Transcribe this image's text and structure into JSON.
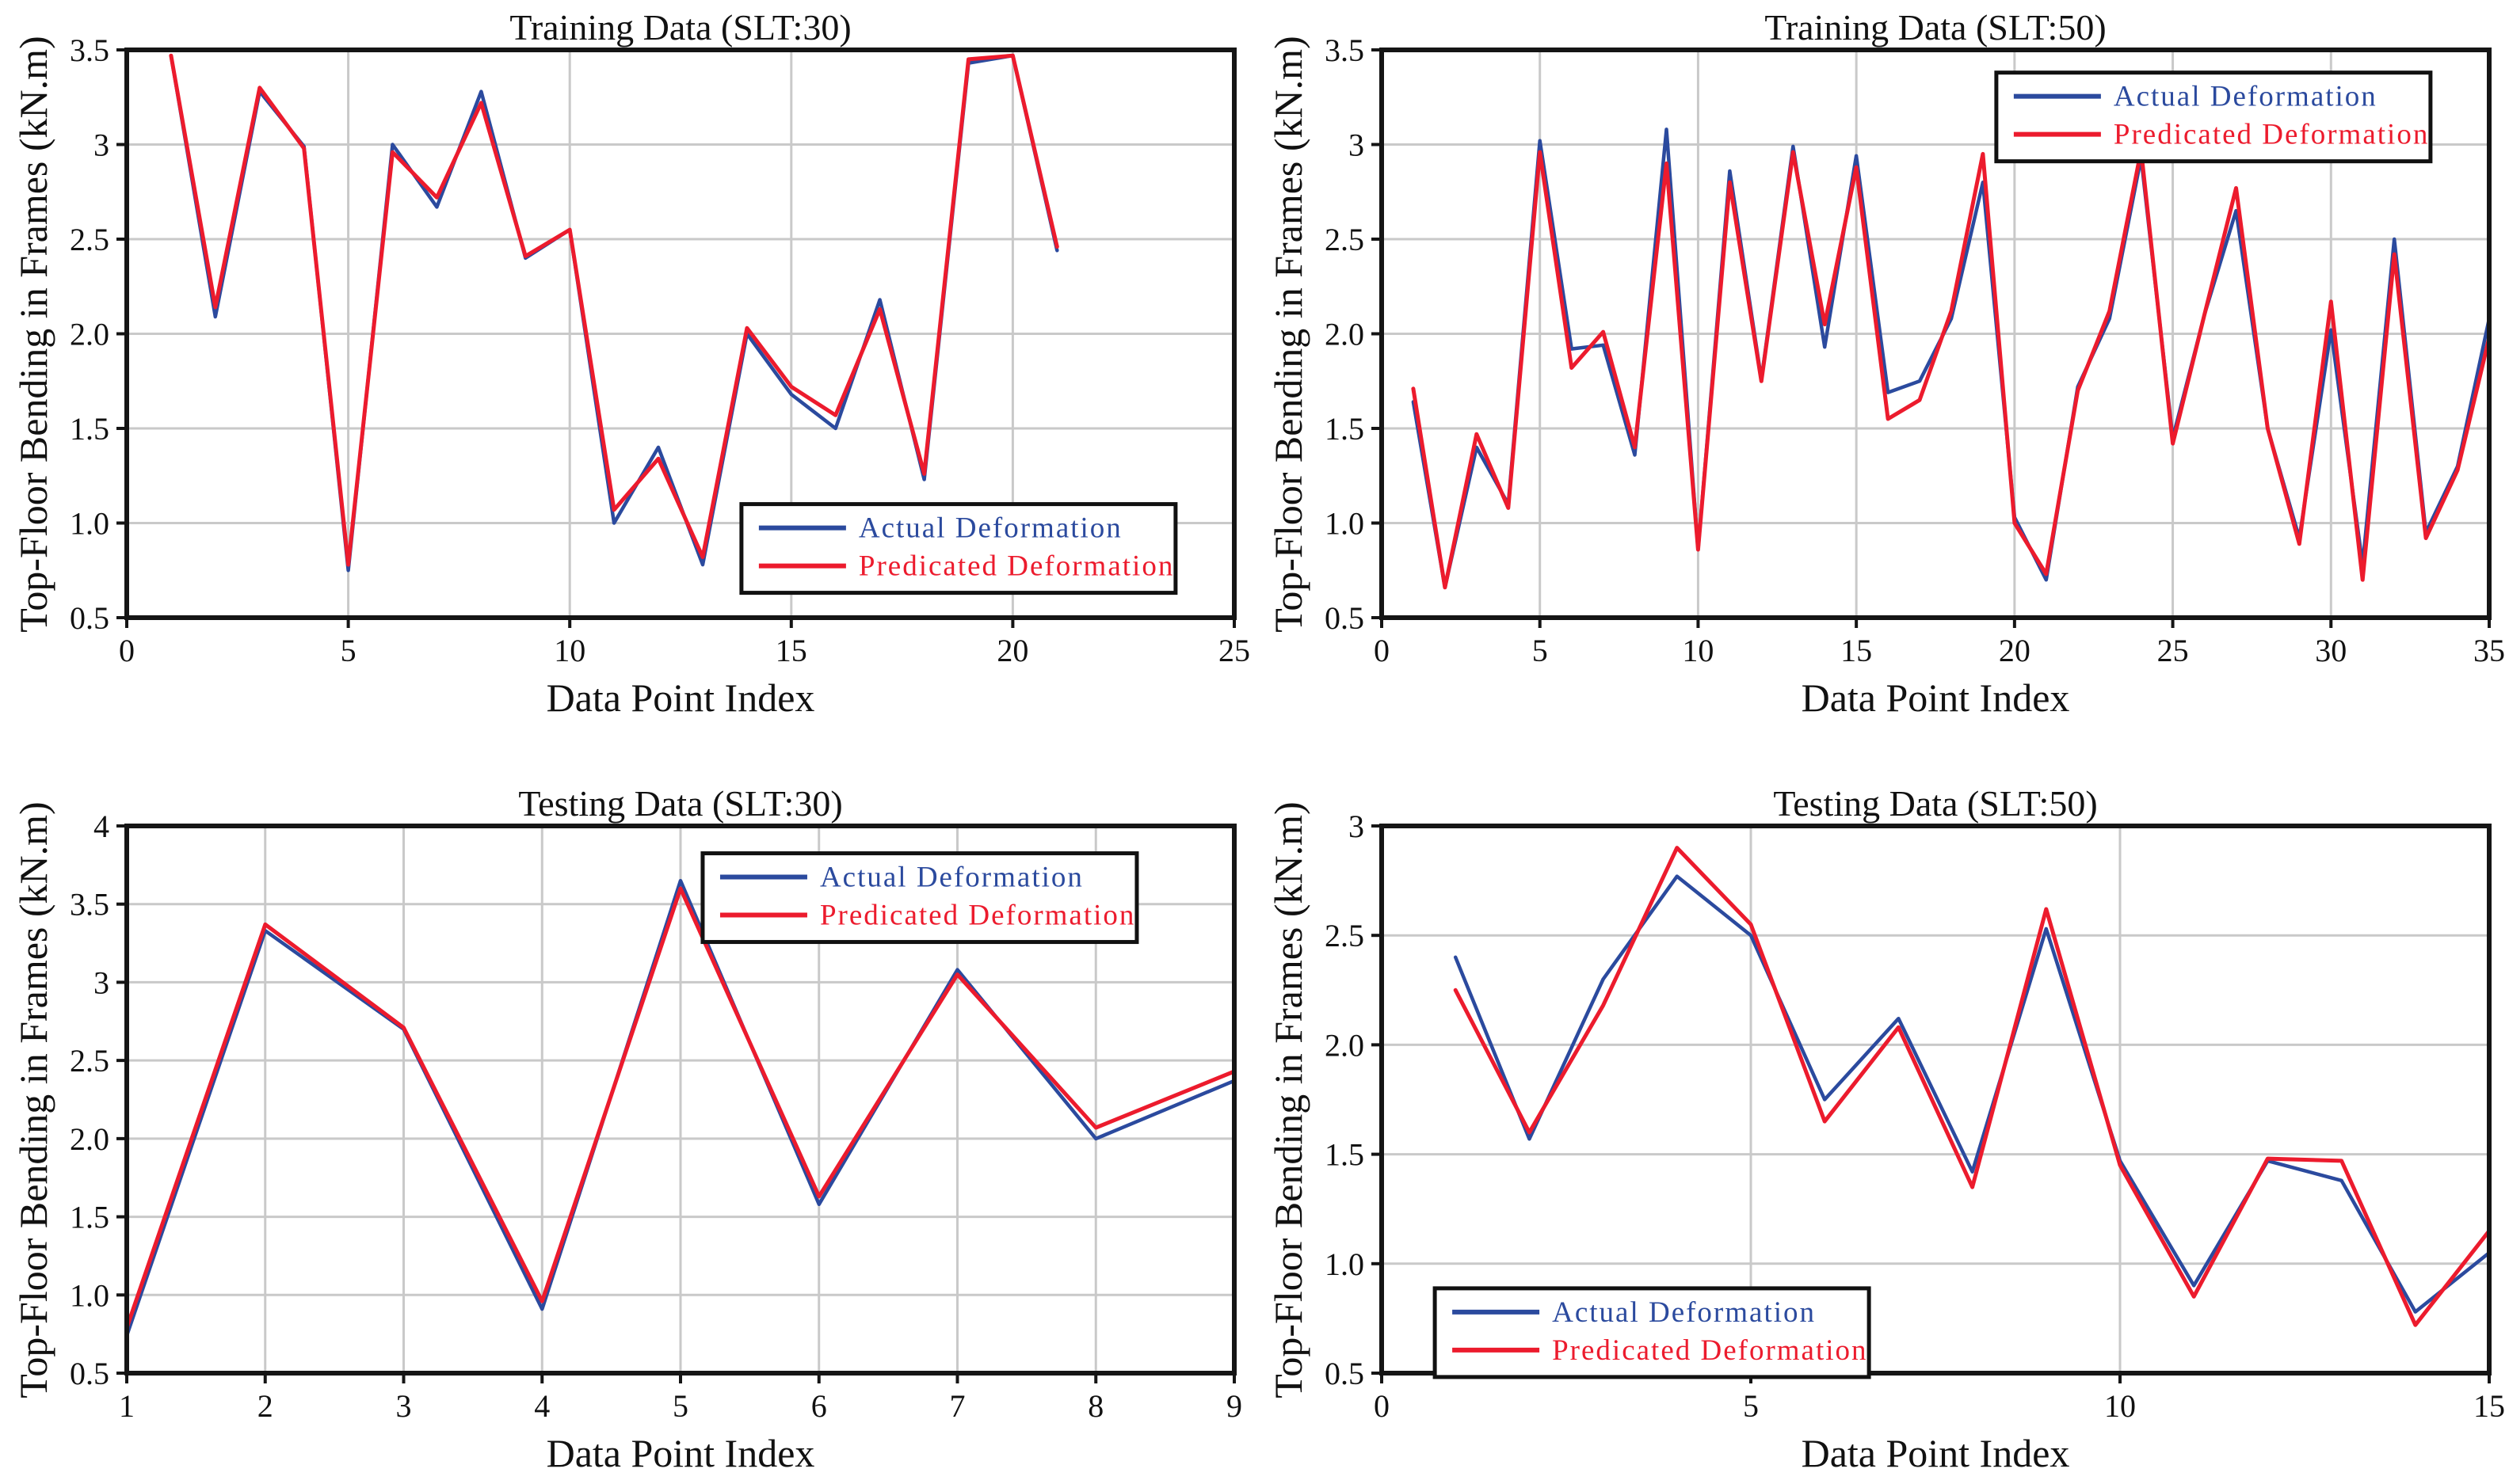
{
  "figure": {
    "background": "#ffffff",
    "grid_color": "#c9c9c9",
    "axis_color": "#151515",
    "tick_label_color": "#111111"
  },
  "legend_labels": {
    "actual": "Actual Deformation",
    "predicated": "Predicated Deformation"
  },
  "series_colors": {
    "actual": "#2b4a9e",
    "predicated": "#ec1b2d"
  },
  "chart_data": [
    {
      "type": "line",
      "title": "Training Data (SLT:30)",
      "xlabel": "Data Point Index",
      "ylabel": "Top-Floor Bending in Frames (kN.m)",
      "xlim": [
        0,
        25
      ],
      "ylim": [
        0.5,
        3.5
      ],
      "xticks": [
        0,
        5,
        10,
        15,
        20,
        25
      ],
      "xtick_labels": [
        "0",
        "5",
        "10",
        "15",
        "20",
        "25"
      ],
      "yticks": [
        0.5,
        1.0,
        1.5,
        2.0,
        2.5,
        3.0,
        3.5
      ],
      "ytick_labels": [
        "0.5",
        "1.0",
        "1.5",
        "2.0",
        "2.5",
        "3",
        "3.5"
      ],
      "grid": true,
      "legend": {
        "left": 0.555,
        "top": 0.8
      },
      "x": [
        1,
        2,
        3,
        4,
        5,
        6,
        7,
        8,
        9,
        10,
        11,
        12,
        13,
        14,
        15,
        16,
        17,
        18,
        19,
        20,
        21
      ],
      "series": [
        {
          "name": "Actual Deformation",
          "color_key": "actual",
          "values": [
            3.47,
            2.09,
            3.28,
            2.99,
            0.75,
            3.0,
            2.67,
            3.28,
            2.4,
            2.55,
            1.0,
            1.4,
            0.78,
            2.0,
            1.68,
            1.5,
            2.18,
            1.23,
            3.43,
            3.47,
            2.44
          ]
        },
        {
          "name": "Predicated Deformation",
          "color_key": "predicated",
          "values": [
            3.47,
            2.14,
            3.3,
            2.98,
            0.78,
            2.96,
            2.72,
            3.22,
            2.41,
            2.55,
            1.07,
            1.34,
            0.82,
            2.03,
            1.72,
            1.57,
            2.13,
            1.26,
            3.45,
            3.47,
            2.46
          ]
        }
      ]
    },
    {
      "type": "line",
      "title": "Training Data (SLT:50)",
      "xlabel": "Data Point Index",
      "ylabel": "Top-Floor Bending in Frames (kN.m)",
      "xlim": [
        0,
        35
      ],
      "ylim": [
        0.5,
        3.5
      ],
      "xticks": [
        0,
        5,
        10,
        15,
        20,
        25,
        30,
        35
      ],
      "xtick_labels": [
        "0",
        "5",
        "10",
        "15",
        "20",
        "25",
        "30",
        "35"
      ],
      "yticks": [
        0.5,
        1.0,
        1.5,
        2.0,
        2.5,
        3.0,
        3.5
      ],
      "ytick_labels": [
        "0.5",
        "1.0",
        "1.5",
        "2.0",
        "2.5",
        "3",
        "3.5"
      ],
      "grid": true,
      "legend": {
        "left": 0.555,
        "top": 0.04
      },
      "x": [
        1,
        2,
        3,
        4,
        5,
        6,
        7,
        8,
        9,
        10,
        11,
        12,
        13,
        14,
        15,
        16,
        17,
        18,
        19,
        20,
        21,
        22,
        23,
        24,
        25,
        26,
        27,
        28,
        29,
        30,
        31,
        32,
        33,
        34,
        35
      ],
      "series": [
        {
          "name": "Actual Deformation",
          "color_key": "actual",
          "values": [
            1.64,
            0.66,
            1.4,
            1.1,
            3.02,
            1.92,
            1.94,
            1.36,
            3.08,
            0.86,
            2.86,
            1.76,
            2.99,
            1.93,
            2.94,
            1.69,
            1.75,
            2.08,
            2.8,
            1.03,
            0.7,
            1.72,
            2.08,
            2.93,
            1.45,
            2.1,
            2.65,
            1.5,
            0.92,
            2.02,
            0.78,
            2.5,
            0.95,
            1.3,
            2.08
          ]
        },
        {
          "name": "Predicated Deformation",
          "color_key": "predicated",
          "values": [
            1.71,
            0.66,
            1.47,
            1.08,
            2.96,
            1.82,
            2.01,
            1.4,
            2.9,
            0.86,
            2.8,
            1.75,
            2.96,
            2.05,
            2.88,
            1.55,
            1.65,
            2.12,
            2.95,
            1.0,
            0.73,
            1.7,
            2.12,
            2.97,
            1.42,
            2.1,
            2.77,
            1.5,
            0.89,
            2.17,
            0.7,
            2.42,
            0.92,
            1.28,
            1.98
          ]
        }
      ]
    },
    {
      "type": "line",
      "title": "Testing Data (SLT:30)",
      "xlabel": "Data Point Index",
      "ylabel": "Top-Floor Bending in Frames (kN.m)",
      "xlim": [
        1,
        9
      ],
      "ylim": [
        0.5,
        4.0
      ],
      "xticks": [
        1,
        2,
        3,
        4,
        5,
        6,
        7,
        8,
        9
      ],
      "xtick_labels": [
        "1",
        "2",
        "3",
        "4",
        "5",
        "6",
        "7",
        "8",
        "9"
      ],
      "yticks": [
        0.5,
        1.0,
        1.5,
        2.0,
        2.5,
        3.0,
        3.5,
        4.0
      ],
      "ytick_labels": [
        "0.5",
        "1.0",
        "1.5",
        "2.0",
        "2.5",
        "3",
        "3.5",
        "4"
      ],
      "grid": true,
      "legend": {
        "left": 0.52,
        "top": 0.05
      },
      "x": [
        1,
        2,
        3,
        4,
        5,
        6,
        7,
        8,
        9
      ],
      "series": [
        {
          "name": "Actual Deformation",
          "color_key": "actual",
          "values": [
            0.74,
            3.33,
            2.7,
            0.91,
            3.65,
            1.58,
            3.08,
            2.0,
            2.37
          ]
        },
        {
          "name": "Predicated Deformation",
          "color_key": "predicated",
          "values": [
            0.79,
            3.37,
            2.71,
            0.96,
            3.6,
            1.63,
            3.05,
            2.07,
            2.43
          ]
        }
      ]
    },
    {
      "type": "line",
      "title": "Testing Data (SLT:50)",
      "xlabel": "Data Point Index",
      "ylabel": "Top-Floor Bending in Frames (kN.m)",
      "xlim": [
        0,
        15
      ],
      "ylim": [
        0.5,
        3.0
      ],
      "xticks": [
        0,
        5,
        10,
        15
      ],
      "xtick_labels": [
        "0",
        "5",
        "10",
        "15"
      ],
      "yticks": [
        0.5,
        1.0,
        1.5,
        2.0,
        2.5,
        3.0
      ],
      "ytick_labels": [
        "0.5",
        "1.0",
        "1.5",
        "2.0",
        "2.5",
        "3"
      ],
      "grid": true,
      "legend": {
        "left": 0.048,
        "top": 0.845
      },
      "x": [
        1,
        2,
        3,
        4,
        5,
        6,
        7,
        8,
        9,
        10,
        11,
        12,
        13,
        14,
        15
      ],
      "series": [
        {
          "name": "Actual Deformation",
          "color_key": "actual",
          "values": [
            2.4,
            1.57,
            2.3,
            2.77,
            2.5,
            1.75,
            2.12,
            1.42,
            2.53,
            1.47,
            0.9,
            1.47,
            1.38,
            0.78,
            1.05
          ]
        },
        {
          "name": "Predicated Deformation",
          "color_key": "predicated",
          "values": [
            2.25,
            1.6,
            2.18,
            2.9,
            2.55,
            1.65,
            2.08,
            1.35,
            2.62,
            1.45,
            0.85,
            1.48,
            1.47,
            0.72,
            1.15
          ]
        }
      ]
    }
  ]
}
